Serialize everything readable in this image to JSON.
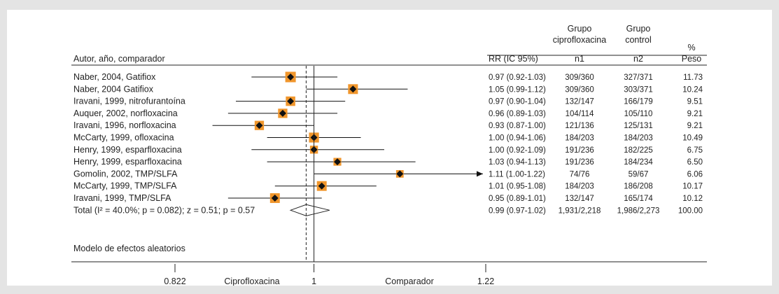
{
  "chart_data": {
    "type": "forest",
    "columns": {
      "author": "Autor, año, comparador",
      "rr": "RR (IC 95%)",
      "group1": [
        "Grupo",
        "ciprofloxacina",
        "n1"
      ],
      "group2": [
        "Grupo",
        "control",
        "n2"
      ],
      "weight": [
        "%",
        "Peso"
      ]
    },
    "studies": [
      {
        "label": "Naber, 2004, Gatifiox",
        "rr": 0.97,
        "lo": 0.92,
        "hi": 1.03,
        "rr_text": "0.97 (0.92-1.03)",
        "n1": "309/360",
        "n2": "327/371",
        "weight": "11.73"
      },
      {
        "label": "Naber, 2004 Gatifiox",
        "rr": 1.05,
        "lo": 0.99,
        "hi": 1.12,
        "rr_text": "1.05 (0.99-1.12)",
        "n1": "309/360",
        "n2": "303/371",
        "weight": "10.24"
      },
      {
        "label": "Iravani, 1999, nitrofurantoína",
        "rr": 0.97,
        "lo": 0.9,
        "hi": 1.04,
        "rr_text": "0.97 (0.90-1.04)",
        "n1": "132/147",
        "n2": "166/179",
        "weight": "9.51"
      },
      {
        "label": "Auquer, 2002, norfloxacina",
        "rr": 0.96,
        "lo": 0.89,
        "hi": 1.03,
        "rr_text": "0.96 (0.89-1.03)",
        "n1": "104/114",
        "n2": "105/110",
        "weight": "9.21"
      },
      {
        "label": "Iravani, 1996, norfloxacina",
        "rr": 0.93,
        "lo": 0.87,
        "hi": 1.0,
        "rr_text": "0.93 (0.87-1.00)",
        "n1": "121/136",
        "n2": "125/131",
        "weight": "9.21"
      },
      {
        "label": "McCarty, 1999, ofloxacina",
        "rr": 1.0,
        "lo": 0.94,
        "hi": 1.06,
        "rr_text": "1.00 (0.94-1.06)",
        "n1": "184/203",
        "n2": "184/203",
        "weight": "10.49"
      },
      {
        "label": "Henry, 1999, esparfloxacina",
        "rr": 1.0,
        "lo": 0.92,
        "hi": 1.09,
        "rr_text": "1.00 (0.92-1.09)",
        "n1": "191/236",
        "n2": "182/225",
        "weight": "6.75"
      },
      {
        "label": "Henry, 1999, esparfloxacina",
        "rr": 1.03,
        "lo": 0.94,
        "hi": 1.13,
        "rr_text": "1.03 (0.94-1.13)",
        "n1": "191/236",
        "n2": "184/234",
        "weight": "6.50"
      },
      {
        "label": "Gomolin, 2002, TMP/SLFA",
        "rr": 1.11,
        "lo": 1.0,
        "hi": 1.22,
        "rr_text": "1.11 (1.00-1.22)",
        "n1": "74/76",
        "n2": "59/67",
        "weight": "6.06",
        "arrow": true
      },
      {
        "label": "McCarty, 1999, TMP/SLFA",
        "rr": 1.01,
        "lo": 0.95,
        "hi": 1.08,
        "rr_text": "1.01 (0.95-1.08)",
        "n1": "184/203",
        "n2": "186/208",
        "weight": "10.17"
      },
      {
        "label": "Iravani, 1999, TMP/SLFA",
        "rr": 0.95,
        "lo": 0.89,
        "hi": 1.01,
        "rr_text": "0.95 (0.89-1.01)",
        "n1": "132/147",
        "n2": "165/174",
        "weight": "10.12"
      }
    ],
    "total": {
      "label": "Total (I² = 40.0%; p = 0.082); z = 0.51; p = 0.57",
      "rr": 0.99,
      "lo": 0.97,
      "hi": 1.02,
      "rr_text": "0.99 (0.97-1.02)",
      "n1": "1,931/2,218",
      "n2": "1,986/2,273",
      "weight": "100.00"
    },
    "model_label": "Modelo de efectos aleatorios",
    "x_axis": {
      "ticks": [
        "0.822",
        "1",
        "1.22"
      ],
      "tick_values": [
        0.822,
        1,
        1.22
      ],
      "left_label": "Ciprofloxacina",
      "right_label": "Comparador"
    },
    "xlim": [
      0.822,
      1.22
    ],
    "null_line": 1,
    "grid": false,
    "colors": {
      "box": "#f0962c",
      "diamond": "#111111",
      "line": "#111111"
    }
  }
}
